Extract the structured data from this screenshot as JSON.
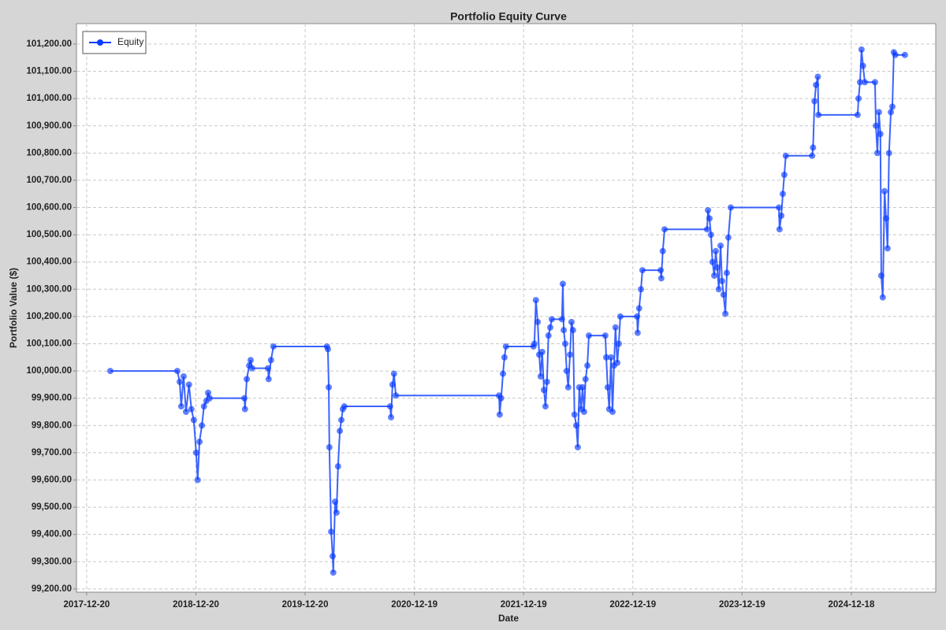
{
  "chart_data": {
    "type": "line",
    "title": "Portfolio Equity Curve",
    "x_label": "Date",
    "y_label": "Portfolio Value ($)",
    "legend": "top-left",
    "grid": true,
    "xlim": [
      "2017-11-16",
      "2025-09-26"
    ],
    "xticks": [
      "2017-12-20",
      "2018-12-20",
      "2019-12-20",
      "2020-12-19",
      "2021-12-19",
      "2022-12-19",
      "2023-12-19",
      "2024-12-18"
    ],
    "ylim": [
      99188,
      101275
    ],
    "yticks": [
      {
        "value": 99200,
        "label": "99,200.00"
      },
      {
        "value": 99300,
        "label": "99,300.00"
      },
      {
        "value": 99400,
        "label": "99,400.00"
      },
      {
        "value": 99500,
        "label": "99,500.00"
      },
      {
        "value": 99600,
        "label": "99,600.00"
      },
      {
        "value": 99700,
        "label": "99,700.00"
      },
      {
        "value": 99800,
        "label": "99,800.00"
      },
      {
        "value": 99900,
        "label": "99,900.00"
      },
      {
        "value": 100000,
        "label": "100,000.00"
      },
      {
        "value": 100100,
        "label": "100,100.00"
      },
      {
        "value": 100200,
        "label": "100,200.00"
      },
      {
        "value": 100300,
        "label": "100,300.00"
      },
      {
        "value": 100400,
        "label": "100,400.00"
      },
      {
        "value": 100500,
        "label": "100,500.00"
      },
      {
        "value": 100600,
        "label": "100,600.00"
      },
      {
        "value": 100700,
        "label": "100,700.00"
      },
      {
        "value": 100800,
        "label": "100,800.00"
      },
      {
        "value": 100900,
        "label": "100,900.00"
      },
      {
        "value": 101000,
        "label": "101,000.00"
      },
      {
        "value": 101100,
        "label": "101,100.00"
      },
      {
        "value": 101200,
        "label": "101,200.00"
      }
    ],
    "x": [
      "2018-03-09",
      "2018-10-19",
      "2018-10-27",
      "2018-11-01",
      "2018-11-09",
      "2018-11-17",
      "2018-11-27",
      "2018-12-05",
      "2018-12-13",
      "2018-12-21",
      "2018-12-26",
      "2019-01-01",
      "2019-01-09",
      "2019-01-16",
      "2019-01-24",
      "2019-01-30",
      "2019-02-04",
      "2019-05-31",
      "2019-06-02",
      "2019-06-08",
      "2019-06-16",
      "2019-06-21",
      "2019-06-26",
      "2019-08-18",
      "2019-08-20",
      "2019-08-28",
      "2019-09-05",
      "2020-03-02",
      "2020-03-05",
      "2020-03-08",
      "2020-03-10",
      "2020-03-16",
      "2020-03-21",
      "2020-03-23",
      "2020-03-29",
      "2020-04-03",
      "2020-04-08",
      "2020-04-14",
      "2020-04-19",
      "2020-04-24",
      "2020-04-29",
      "2020-09-29",
      "2020-10-02",
      "2020-10-07",
      "2020-10-12",
      "2020-10-18",
      "2021-09-28",
      "2021-09-30",
      "2021-10-05",
      "2021-10-11",
      "2021-10-16",
      "2021-10-21",
      "2022-01-21",
      "2022-01-24",
      "2022-01-29",
      "2022-02-04",
      "2022-02-09",
      "2022-02-14",
      "2022-02-19",
      "2022-02-25",
      "2022-03-02",
      "2022-03-07",
      "2022-03-12",
      "2022-03-18",
      "2022-03-23",
      "2022-04-26",
      "2022-04-29",
      "2022-05-02",
      "2022-05-07",
      "2022-05-12",
      "2022-05-17",
      "2022-05-23",
      "2022-05-28",
      "2022-06-02",
      "2022-06-07",
      "2022-06-13",
      "2022-06-18",
      "2022-06-23",
      "2022-06-29",
      "2022-07-04",
      "2022-07-09",
      "2022-07-14",
      "2022-07-20",
      "2022-07-25",
      "2022-09-18",
      "2022-09-21",
      "2022-09-26",
      "2022-10-01",
      "2022-10-07",
      "2022-10-12",
      "2022-10-17",
      "2022-10-22",
      "2022-10-28",
      "2022-11-02",
      "2022-11-07",
      "2023-01-02",
      "2023-01-04",
      "2023-01-09",
      "2023-01-15",
      "2023-01-20",
      "2023-03-22",
      "2023-03-24",
      "2023-03-29",
      "2023-04-04",
      "2023-08-24",
      "2023-08-27",
      "2023-09-01",
      "2023-09-06",
      "2023-09-11",
      "2023-09-17",
      "2023-09-22",
      "2023-09-27",
      "2023-10-02",
      "2023-10-08",
      "2023-10-13",
      "2023-10-18",
      "2023-10-24",
      "2023-10-29",
      "2023-11-03",
      "2023-11-11",
      "2024-04-20",
      "2024-04-22",
      "2024-04-28",
      "2024-05-03",
      "2024-05-08",
      "2024-05-13",
      "2024-08-09",
      "2024-08-12",
      "2024-08-17",
      "2024-08-22",
      "2024-08-28",
      "2024-08-30",
      "2025-01-08",
      "2025-01-11",
      "2025-01-16",
      "2025-01-21",
      "2025-01-26",
      "2025-02-01",
      "2025-03-07",
      "2025-03-10",
      "2025-03-15",
      "2025-03-20",
      "2025-03-25",
      "2025-03-28",
      "2025-04-02",
      "2025-04-08",
      "2025-04-13",
      "2025-04-18",
      "2025-04-23",
      "2025-04-29",
      "2025-05-04",
      "2025-05-09",
      "2025-05-14",
      "2025-06-15"
    ],
    "series": [
      {
        "name": "Equity",
        "color": "#0a3cff",
        "values": [
          100000,
          100000,
          99960,
          99870,
          99980,
          99850,
          99950,
          99860,
          99820,
          99700,
          99600,
          99740,
          99800,
          99870,
          99890,
          99920,
          99900,
          99900,
          99860,
          99970,
          100020,
          100040,
          100010,
          100010,
          99970,
          100040,
          100090,
          100090,
          100080,
          99940,
          99720,
          99410,
          99320,
          99260,
          99520,
          99480,
          99650,
          99780,
          99820,
          99860,
          99870,
          99870,
          99830,
          99950,
          99990,
          99910,
          99910,
          99840,
          99900,
          99990,
          100050,
          100090,
          100090,
          100100,
          100260,
          100180,
          100060,
          99980,
          100070,
          99930,
          99870,
          99960,
          100130,
          100160,
          100190,
          100190,
          100320,
          100150,
          100100,
          100000,
          99940,
          100060,
          100180,
          100150,
          99840,
          99800,
          99720,
          99940,
          99860,
          99940,
          99850,
          99970,
          100020,
          100130,
          100130,
          100050,
          99940,
          99860,
          100050,
          99850,
          100020,
          100160,
          100030,
          100100,
          100200,
          100200,
          100140,
          100230,
          100300,
          100370,
          100370,
          100340,
          100440,
          100520,
          100520,
          100590,
          100560,
          100500,
          100400,
          100350,
          100440,
          100380,
          100300,
          100460,
          100330,
          100280,
          100210,
          100360,
          100490,
          100600,
          100600,
          100520,
          100570,
          100650,
          100720,
          100790,
          100790,
          100820,
          100990,
          101050,
          101080,
          100940,
          100940,
          101000,
          101060,
          101180,
          101120,
          101060,
          101060,
          100900,
          100800,
          100950,
          100870,
          100350,
          100270,
          100660,
          100560,
          100450,
          100800,
          100950,
          100970,
          101170,
          101160,
          101160
        ]
      }
    ]
  }
}
